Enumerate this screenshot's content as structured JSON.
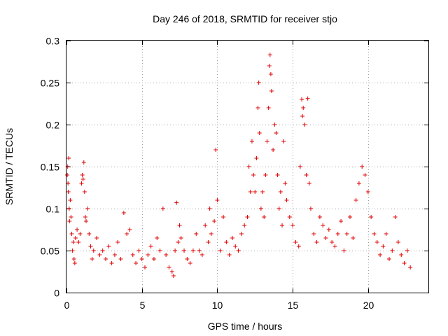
{
  "chart_data": {
    "type": "scatter",
    "title": "Day 246 of 2018, SRMTID for receiver stjo",
    "xlabel": "GPS time / hours",
    "ylabel": "SRMTID / TECUs",
    "xlim": [
      0,
      24
    ],
    "ylim": [
      0,
      0.3
    ],
    "xticks": [
      0,
      5,
      10,
      15,
      20
    ],
    "xtick_labels": [
      "0",
      "5",
      "10",
      "15",
      "20"
    ],
    "yticks": [
      0,
      0.05,
      0.1,
      0.15,
      0.2,
      0.25,
      0.3
    ],
    "ytick_labels": [
      "0",
      "0.05",
      "0.1",
      "0.15",
      "0.2",
      "0.25",
      "0.3"
    ],
    "grid": true,
    "marker": "+",
    "color": "#e00000",
    "series": [
      {
        "name": "SRMTID",
        "points": [
          [
            0.05,
            0.14
          ],
          [
            0.08,
            0.15
          ],
          [
            0.1,
            0.13
          ],
          [
            0.12,
            0.12
          ],
          [
            0.15,
            0.16
          ],
          [
            0.18,
            0.1
          ],
          [
            0.2,
            0.085
          ],
          [
            0.25,
            0.11
          ],
          [
            0.3,
            0.09
          ],
          [
            0.35,
            0.07
          ],
          [
            0.4,
            0.05
          ],
          [
            0.45,
            0.06
          ],
          [
            0.5,
            0.04
          ],
          [
            0.55,
            0.035
          ],
          [
            0.6,
            0.065
          ],
          [
            0.7,
            0.075
          ],
          [
            0.8,
            0.06
          ],
          [
            0.9,
            0.07
          ],
          [
            1.0,
            0.13
          ],
          [
            1.05,
            0.14
          ],
          [
            1.1,
            0.135
          ],
          [
            1.15,
            0.155
          ],
          [
            1.2,
            0.12
          ],
          [
            1.25,
            0.09
          ],
          [
            1.3,
            0.085
          ],
          [
            1.4,
            0.1
          ],
          [
            1.5,
            0.07
          ],
          [
            1.6,
            0.055
          ],
          [
            1.7,
            0.04
          ],
          [
            1.8,
            0.05
          ],
          [
            2.0,
            0.065
          ],
          [
            2.2,
            0.045
          ],
          [
            2.4,
            0.05
          ],
          [
            2.6,
            0.04
          ],
          [
            2.8,
            0.055
          ],
          [
            3.0,
            0.035
          ],
          [
            3.2,
            0.045
          ],
          [
            3.4,
            0.06
          ],
          [
            3.6,
            0.04
          ],
          [
            3.8,
            0.095
          ],
          [
            4.0,
            0.07
          ],
          [
            4.2,
            0.075
          ],
          [
            4.4,
            0.045
          ],
          [
            4.6,
            0.035
          ],
          [
            4.8,
            0.05
          ],
          [
            5.0,
            0.04
          ],
          [
            5.2,
            0.03
          ],
          [
            5.4,
            0.045
          ],
          [
            5.6,
            0.055
          ],
          [
            5.8,
            0.04
          ],
          [
            6.0,
            0.065
          ],
          [
            6.2,
            0.05
          ],
          [
            6.4,
            0.1
          ],
          [
            6.6,
            0.045
          ],
          [
            6.8,
            0.03
          ],
          [
            7.0,
            0.025
          ],
          [
            7.1,
            0.02
          ],
          [
            7.2,
            0.05
          ],
          [
            7.3,
            0.107
          ],
          [
            7.4,
            0.06
          ],
          [
            7.5,
            0.08
          ],
          [
            7.6,
            0.065
          ],
          [
            7.8,
            0.05
          ],
          [
            8.0,
            0.04
          ],
          [
            8.2,
            0.035
          ],
          [
            8.4,
            0.05
          ],
          [
            8.6,
            0.07
          ],
          [
            8.8,
            0.05
          ],
          [
            9.0,
            0.045
          ],
          [
            9.2,
            0.08
          ],
          [
            9.4,
            0.06
          ],
          [
            9.5,
            0.1
          ],
          [
            9.6,
            0.07
          ],
          [
            9.8,
            0.085
          ],
          [
            9.9,
            0.17
          ],
          [
            10.0,
            0.11
          ],
          [
            10.2,
            0.05
          ],
          [
            10.4,
            0.09
          ],
          [
            10.6,
            0.06
          ],
          [
            10.8,
            0.045
          ],
          [
            11.0,
            0.065
          ],
          [
            11.2,
            0.055
          ],
          [
            11.4,
            0.05
          ],
          [
            11.6,
            0.07
          ],
          [
            11.8,
            0.08
          ],
          [
            12.0,
            0.09
          ],
          [
            12.1,
            0.15
          ],
          [
            12.2,
            0.12
          ],
          [
            12.3,
            0.18
          ],
          [
            12.4,
            0.14
          ],
          [
            12.5,
            0.12
          ],
          [
            12.6,
            0.16
          ],
          [
            12.7,
            0.22
          ],
          [
            12.75,
            0.25
          ],
          [
            12.8,
            0.19
          ],
          [
            12.9,
            0.1
          ],
          [
            13.0,
            0.12
          ],
          [
            13.1,
            0.09
          ],
          [
            13.2,
            0.14
          ],
          [
            13.3,
            0.18
          ],
          [
            13.4,
            0.22
          ],
          [
            13.45,
            0.27
          ],
          [
            13.5,
            0.283
          ],
          [
            13.55,
            0.26
          ],
          [
            13.6,
            0.24
          ],
          [
            13.7,
            0.17
          ],
          [
            13.8,
            0.2
          ],
          [
            13.9,
            0.19
          ],
          [
            14.0,
            0.14
          ],
          [
            14.1,
            0.1
          ],
          [
            14.2,
            0.12
          ],
          [
            14.3,
            0.08
          ],
          [
            14.4,
            0.18
          ],
          [
            14.5,
            0.13
          ],
          [
            14.6,
            0.11
          ],
          [
            14.8,
            0.09
          ],
          [
            15.0,
            0.08
          ],
          [
            15.2,
            0.06
          ],
          [
            15.4,
            0.055
          ],
          [
            15.5,
            0.15
          ],
          [
            15.6,
            0.23
          ],
          [
            15.65,
            0.21
          ],
          [
            15.7,
            0.22
          ],
          [
            15.8,
            0.2
          ],
          [
            15.9,
            0.14
          ],
          [
            16.0,
            0.231
          ],
          [
            16.1,
            0.13
          ],
          [
            16.2,
            0.1
          ],
          [
            16.4,
            0.07
          ],
          [
            16.6,
            0.06
          ],
          [
            16.8,
            0.09
          ],
          [
            17.0,
            0.08
          ],
          [
            17.2,
            0.065
          ],
          [
            17.4,
            0.075
          ],
          [
            17.6,
            0.06
          ],
          [
            17.8,
            0.055
          ],
          [
            18.0,
            0.07
          ],
          [
            18.2,
            0.085
          ],
          [
            18.4,
            0.05
          ],
          [
            18.6,
            0.07
          ],
          [
            18.8,
            0.09
          ],
          [
            19.0,
            0.065
          ],
          [
            19.2,
            0.11
          ],
          [
            19.4,
            0.13
          ],
          [
            19.6,
            0.15
          ],
          [
            19.8,
            0.14
          ],
          [
            20.0,
            0.12
          ],
          [
            20.2,
            0.09
          ],
          [
            20.4,
            0.07
          ],
          [
            20.6,
            0.06
          ],
          [
            20.8,
            0.045
          ],
          [
            21.0,
            0.055
          ],
          [
            21.2,
            0.07
          ],
          [
            21.4,
            0.04
          ],
          [
            21.6,
            0.05
          ],
          [
            21.8,
            0.09
          ],
          [
            22.0,
            0.06
          ],
          [
            22.2,
            0.045
          ],
          [
            22.4,
            0.035
          ],
          [
            22.6,
            0.05
          ],
          [
            22.8,
            0.03
          ]
        ]
      }
    ]
  }
}
